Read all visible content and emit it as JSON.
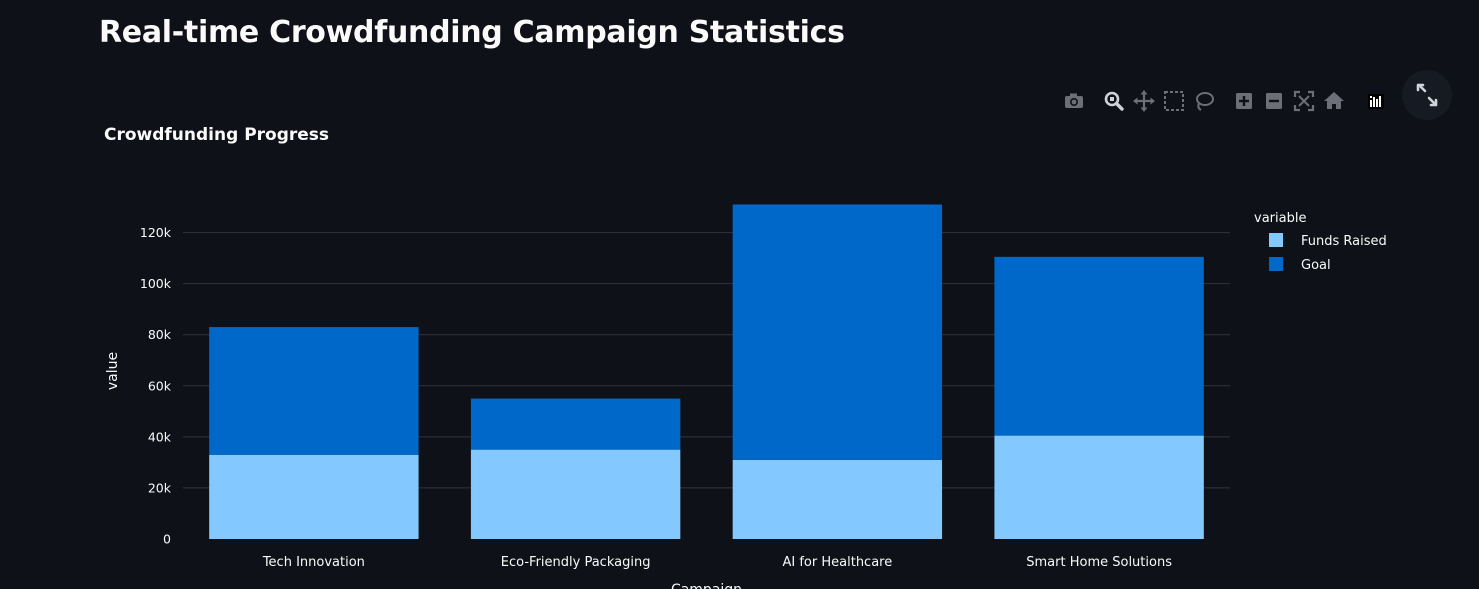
{
  "page": {
    "title": "Real-time Crowdfunding Campaign Statistics"
  },
  "modebar": {
    "buttons": [
      {
        "name": "camera-icon"
      },
      {
        "name": "zoom-icon"
      },
      {
        "name": "pan-icon"
      },
      {
        "name": "box-select-icon"
      },
      {
        "name": "lasso-select-icon"
      },
      {
        "name": "zoom-in-icon"
      },
      {
        "name": "zoom-out-icon"
      },
      {
        "name": "autoscale-icon"
      },
      {
        "name": "reset-axes-icon"
      },
      {
        "name": "plotly-logo-icon"
      }
    ]
  },
  "colors": {
    "background": "#0e1117",
    "funds_raised": "#83c9ff",
    "goal": "#0068c9",
    "grid": "#31333f",
    "text": "#fafafa",
    "modebar_icon": "#6c6f78"
  },
  "chart_data": {
    "type": "bar",
    "barmode": "stack",
    "title": "Crowdfunding Progress",
    "xlabel": "Campaign",
    "ylabel": "value",
    "categories": [
      "Tech Innovation",
      "Eco-Friendly Packaging",
      "AI for Healthcare",
      "Smart Home Solutions"
    ],
    "series": [
      {
        "name": "Funds Raised",
        "color": "#83c9ff",
        "values": [
          33000,
          35000,
          31000,
          40500
        ]
      },
      {
        "name": "Goal",
        "color": "#0068c9",
        "values": [
          50000,
          20000,
          100000,
          70000
        ]
      }
    ],
    "ylim": [
      0,
      131000
    ],
    "yticks": [
      0,
      20000,
      40000,
      60000,
      80000,
      100000,
      120000
    ],
    "ytick_labels": [
      "0",
      "20k",
      "40k",
      "60k",
      "80k",
      "100k",
      "120k"
    ],
    "grid": true,
    "legend": {
      "title": "variable",
      "position": "top-right"
    }
  }
}
